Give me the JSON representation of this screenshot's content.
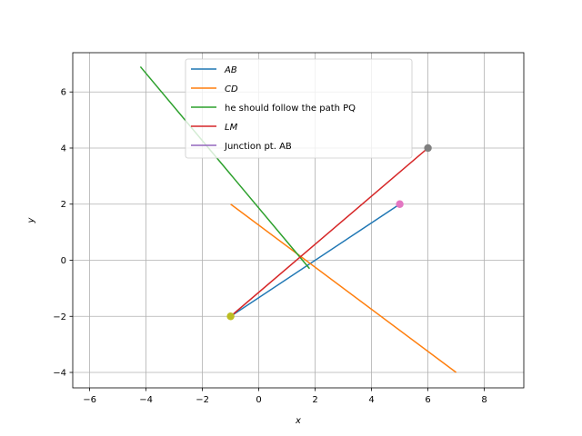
{
  "chart_data": {
    "type": "line",
    "title": "",
    "xlabel": "x",
    "ylabel": "y",
    "xlim": [
      -6.6,
      9.4
    ],
    "ylim": [
      -4.55,
      7.4
    ],
    "x_ticks": [
      -6,
      -4,
      -2,
      0,
      2,
      4,
      6,
      8
    ],
    "y_ticks": [
      -4,
      -2,
      0,
      2,
      4,
      6
    ],
    "x_tick_labels": [
      "−6",
      "−4",
      "−2",
      "0",
      "2",
      "4",
      "6",
      "8"
    ],
    "y_tick_labels": [
      "−4",
      "−2",
      "0",
      "2",
      "4",
      "6"
    ],
    "grid": true,
    "legend_position": "top-center",
    "series": [
      {
        "name": "AB",
        "italic": true,
        "color": "#1f77b4",
        "kind": "line",
        "x": [
          -1,
          5
        ],
        "y": [
          -2,
          2
        ]
      },
      {
        "name": "CD",
        "italic": true,
        "color": "#ff7f0e",
        "kind": "line",
        "x": [
          -1,
          7
        ],
        "y": [
          2,
          -4
        ]
      },
      {
        "name": "he should follow the path PQ",
        "italic": false,
        "color": "#2ca02c",
        "kind": "line",
        "x": [
          -4.2,
          1.8
        ],
        "y": [
          6.9,
          -0.3
        ]
      },
      {
        "name": "LM",
        "italic": true,
        "color": "#d62728",
        "kind": "line",
        "x": [
          -1,
          6
        ],
        "y": [
          -2,
          4
        ]
      },
      {
        "name": "Junction pt. AB",
        "italic": false,
        "color": "#9467bd",
        "kind": "line",
        "x": [],
        "y": []
      }
    ],
    "points": [
      {
        "color": "#e377c2",
        "x": 5,
        "y": 2
      },
      {
        "color": "#7f7f7f",
        "x": 6,
        "y": 4
      },
      {
        "color": "#bcbd22",
        "x": -1,
        "y": -2
      }
    ]
  }
}
